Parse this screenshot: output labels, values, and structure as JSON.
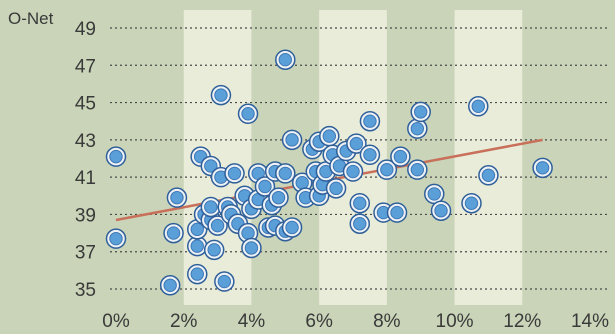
{
  "chart_data": {
    "type": "scatter",
    "ylabel": "O-Net",
    "xlim": [
      0,
      14
    ],
    "ylim": [
      35,
      49
    ],
    "x_ticks": [
      0,
      2,
      4,
      6,
      8,
      10,
      12,
      14
    ],
    "x_tick_labels": [
      "0%",
      "2%",
      "4%",
      "6%",
      "8%",
      "10%",
      "12%",
      "14%"
    ],
    "y_ticks": [
      35,
      37,
      39,
      41,
      43,
      45,
      47,
      49
    ],
    "y_tick_labels": [
      "35",
      "37",
      "39",
      "41",
      "43",
      "45",
      "47",
      "49"
    ],
    "grid": "horizontal dotted, alternating vertical bands",
    "trendline": {
      "x": [
        0,
        12.6
      ],
      "y": [
        38.7,
        43.0
      ]
    },
    "colors": {
      "point_fill": "#5a9fd8",
      "point_edge": "#2f5f9a",
      "trendline": "#c8705a",
      "band_light": "#e8ecd8",
      "band_dark": "#c9d4b8"
    },
    "series": [
      {
        "points": [
          [
            0.0,
            42.1
          ],
          [
            0.0,
            37.7
          ],
          [
            1.6,
            35.2
          ],
          [
            1.7,
            38.0
          ],
          [
            1.8,
            39.9
          ],
          [
            2.4,
            37.3
          ],
          [
            2.4,
            38.2
          ],
          [
            2.4,
            35.8
          ],
          [
            2.5,
            42.1
          ],
          [
            2.6,
            39.0
          ],
          [
            2.8,
            41.6
          ],
          [
            2.8,
            38.7
          ],
          [
            2.8,
            39.4
          ],
          [
            2.9,
            37.1
          ],
          [
            3.0,
            38.4
          ],
          [
            3.1,
            45.4
          ],
          [
            3.1,
            41.0
          ],
          [
            3.2,
            35.4
          ],
          [
            3.3,
            39.4
          ],
          [
            3.4,
            39.0
          ],
          [
            3.5,
            41.2
          ],
          [
            3.6,
            38.5
          ],
          [
            3.8,
            40.0
          ],
          [
            3.9,
            44.4
          ],
          [
            3.9,
            38.0
          ],
          [
            4.0,
            37.2
          ],
          [
            4.0,
            39.3
          ],
          [
            4.2,
            39.8
          ],
          [
            4.2,
            41.2
          ],
          [
            4.4,
            40.5
          ],
          [
            4.5,
            38.3
          ],
          [
            4.6,
            39.5
          ],
          [
            4.7,
            41.3
          ],
          [
            4.7,
            38.4
          ],
          [
            4.8,
            39.9
          ],
          [
            5.0,
            47.3
          ],
          [
            5.0,
            41.2
          ],
          [
            5.0,
            38.1
          ],
          [
            5.2,
            43.0
          ],
          [
            5.2,
            38.3
          ],
          [
            5.5,
            40.7
          ],
          [
            5.6,
            39.9
          ],
          [
            5.8,
            42.5
          ],
          [
            5.9,
            41.3
          ],
          [
            6.0,
            42.9
          ],
          [
            6.0,
            40.0
          ],
          [
            6.1,
            40.6
          ],
          [
            6.2,
            41.3
          ],
          [
            6.3,
            43.2
          ],
          [
            6.4,
            42.2
          ],
          [
            6.5,
            40.4
          ],
          [
            6.6,
            41.6
          ],
          [
            6.8,
            42.4
          ],
          [
            7.0,
            41.3
          ],
          [
            7.1,
            42.8
          ],
          [
            7.2,
            39.6
          ],
          [
            7.2,
            38.5
          ],
          [
            7.5,
            44.0
          ],
          [
            7.5,
            42.2
          ],
          [
            7.9,
            39.1
          ],
          [
            8.0,
            41.4
          ],
          [
            8.3,
            39.1
          ],
          [
            8.4,
            42.1
          ],
          [
            8.9,
            41.4
          ],
          [
            8.9,
            43.6
          ],
          [
            9.0,
            44.5
          ],
          [
            9.4,
            40.1
          ],
          [
            9.6,
            39.2
          ],
          [
            10.5,
            39.6
          ],
          [
            10.7,
            44.8
          ],
          [
            11.0,
            41.1
          ],
          [
            12.6,
            41.5
          ]
        ]
      }
    ]
  }
}
